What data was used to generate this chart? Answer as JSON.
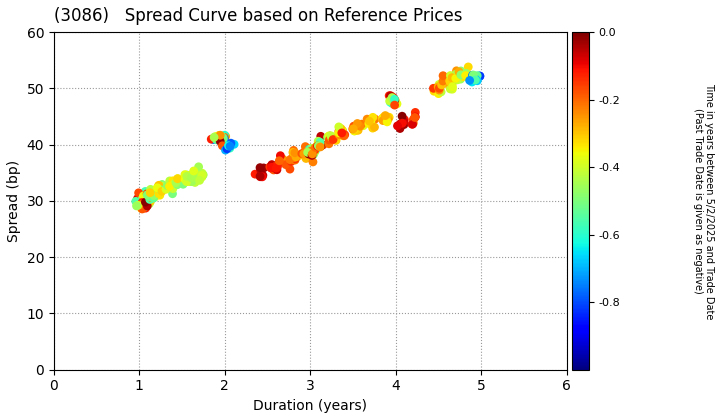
{
  "title": "(3086)   Spread Curve based on Reference Prices",
  "xlabel": "Duration (years)",
  "ylabel": "Spread (bp)",
  "xlim": [
    0,
    6
  ],
  "ylim": [
    0,
    60
  ],
  "xticks": [
    0,
    1,
    2,
    3,
    4,
    5,
    6
  ],
  "yticks": [
    0,
    10,
    20,
    30,
    40,
    50,
    60
  ],
  "colorbar_label_line1": "Time in years between 5/2/2025 and Trade Date",
  "colorbar_label_line2": "(Past Trade Date is given as negative)",
  "cbar_vmin": -1.0,
  "cbar_vmax": 0.0,
  "cbar_ticks": [
    0.0,
    -0.2,
    -0.4,
    -0.6,
    -0.8
  ],
  "background": "#ffffff",
  "grid_color": "#999999",
  "point_size": 40,
  "clusters": [
    {
      "dc": 1.05,
      "sc": 30,
      "ds": 0.04,
      "ss": 1.5,
      "n": 35,
      "ts": -0.01,
      "te": -0.6
    },
    {
      "dc": 1.15,
      "sc": 31,
      "ds": 0.04,
      "ss": 1.2,
      "n": 20,
      "ts": -0.18,
      "te": -0.55
    },
    {
      "dc": 1.28,
      "sc": 32,
      "ds": 0.04,
      "ss": 1.2,
      "n": 15,
      "ts": -0.28,
      "te": -0.52
    },
    {
      "dc": 1.42,
      "sc": 33,
      "ds": 0.04,
      "ss": 1.2,
      "n": 15,
      "ts": -0.32,
      "te": -0.5
    },
    {
      "dc": 1.58,
      "sc": 34,
      "ds": 0.04,
      "ss": 1.2,
      "n": 12,
      "ts": -0.35,
      "te": -0.48
    },
    {
      "dc": 1.72,
      "sc": 35,
      "ds": 0.04,
      "ss": 1.2,
      "n": 10,
      "ts": -0.38,
      "te": -0.46
    },
    {
      "dc": 1.95,
      "sc": 41,
      "ds": 0.04,
      "ss": 1.2,
      "n": 25,
      "ts": -0.02,
      "te": -0.8
    },
    {
      "dc": 2.05,
      "sc": 40,
      "ds": 0.03,
      "ss": 1.0,
      "n": 8,
      "ts": -0.55,
      "te": -0.82
    },
    {
      "dc": 2.42,
      "sc": 35,
      "ds": 0.04,
      "ss": 1.2,
      "n": 10,
      "ts": -0.02,
      "te": -0.12
    },
    {
      "dc": 2.57,
      "sc": 36,
      "ds": 0.04,
      "ss": 1.2,
      "n": 12,
      "ts": -0.05,
      "te": -0.18
    },
    {
      "dc": 2.7,
      "sc": 37,
      "ds": 0.04,
      "ss": 1.2,
      "n": 12,
      "ts": -0.1,
      "te": -0.25
    },
    {
      "dc": 2.83,
      "sc": 38,
      "ds": 0.04,
      "ss": 1.2,
      "n": 12,
      "ts": -0.15,
      "te": -0.3
    },
    {
      "dc": 2.96,
      "sc": 38.5,
      "ds": 0.04,
      "ss": 1.2,
      "n": 12,
      "ts": -0.18,
      "te": -0.35
    },
    {
      "dc": 3.02,
      "sc": 39,
      "ds": 0.03,
      "ss": 1.0,
      "n": 20,
      "ts": -0.01,
      "te": -0.65
    },
    {
      "dc": 3.1,
      "sc": 40,
      "ds": 0.03,
      "ss": 1.0,
      "n": 15,
      "ts": -0.02,
      "te": -0.55
    },
    {
      "dc": 3.22,
      "sc": 41,
      "ds": 0.03,
      "ss": 1.0,
      "n": 12,
      "ts": -0.08,
      "te": -0.45
    },
    {
      "dc": 3.38,
      "sc": 42,
      "ds": 0.03,
      "ss": 1.0,
      "n": 12,
      "ts": -0.12,
      "te": -0.4
    },
    {
      "dc": 3.55,
      "sc": 43,
      "ds": 0.03,
      "ss": 1.0,
      "n": 12,
      "ts": -0.18,
      "te": -0.38
    },
    {
      "dc": 3.72,
      "sc": 44,
      "ds": 0.03,
      "ss": 1.0,
      "n": 10,
      "ts": -0.22,
      "te": -0.36
    },
    {
      "dc": 3.88,
      "sc": 44.5,
      "ds": 0.03,
      "ss": 1.0,
      "n": 10,
      "ts": -0.25,
      "te": -0.35
    },
    {
      "dc": 3.97,
      "sc": 48,
      "ds": 0.03,
      "ss": 1.0,
      "n": 18,
      "ts": -0.02,
      "te": -0.62
    },
    {
      "dc": 4.07,
      "sc": 44,
      "ds": 0.03,
      "ss": 1.0,
      "n": 8,
      "ts": -0.01,
      "te": -0.12
    },
    {
      "dc": 4.2,
      "sc": 44.5,
      "ds": 0.03,
      "ss": 1.0,
      "n": 8,
      "ts": -0.08,
      "te": -0.22
    },
    {
      "dc": 4.5,
      "sc": 50,
      "ds": 0.04,
      "ss": 1.2,
      "n": 12,
      "ts": -0.15,
      "te": -0.42
    },
    {
      "dc": 4.62,
      "sc": 51,
      "ds": 0.04,
      "ss": 1.2,
      "n": 12,
      "ts": -0.2,
      "te": -0.45
    },
    {
      "dc": 4.72,
      "sc": 52,
      "ds": 0.04,
      "ss": 1.2,
      "n": 12,
      "ts": -0.25,
      "te": -0.48
    },
    {
      "dc": 4.82,
      "sc": 52.5,
      "ds": 0.03,
      "ss": 1.0,
      "n": 10,
      "ts": -0.3,
      "te": -0.5
    },
    {
      "dc": 4.93,
      "sc": 52,
      "ds": 0.03,
      "ss": 1.0,
      "n": 12,
      "ts": -0.5,
      "te": -0.82
    }
  ]
}
